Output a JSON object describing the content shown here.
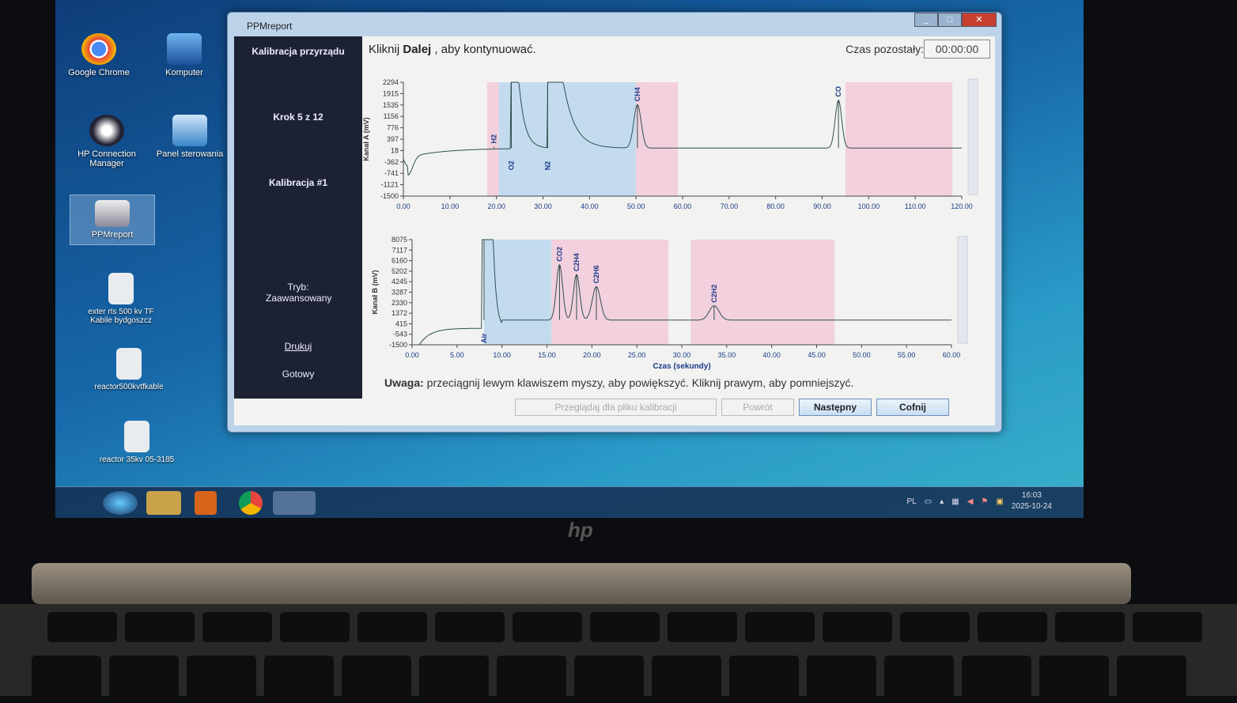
{
  "desktop": {
    "icons": [
      {
        "label": "Google Chrome",
        "icon": "chrome-icon"
      },
      {
        "label": "Komputer",
        "icon": "computer-icon"
      },
      {
        "label": "HP Connection Manager",
        "icon": "wifi-icon"
      },
      {
        "label": "Panel sterowania",
        "icon": "control-panel-icon"
      },
      {
        "label": "PPMreport",
        "icon": "ppmreport-icon"
      },
      {
        "label": "exter rts 500 kv TF Kabile bydgoszcz",
        "icon": "document-icon"
      },
      {
        "label": "reactor500kvtfkable",
        "icon": "document-icon"
      },
      {
        "label": "reactor 35kv 05-3185",
        "icon": "document-icon"
      }
    ]
  },
  "taskbar": {
    "language": "PL",
    "time": "16:03",
    "date": "2025-10-24"
  },
  "window": {
    "title": "PPMreport",
    "left_panel": {
      "heading": "Kalibracja przyrządu",
      "step": "Krok 5 z 12",
      "calibration": "Kalibracja #1",
      "mode": "Tryb: Zaawansowany",
      "print": "Drukuj",
      "status": "Gotowy"
    },
    "instruction_prefix": "Kliknij ",
    "instruction_bold": "Dalej",
    "instruction_suffix": " , aby kontynuować.",
    "time_left_label": "Czas pozostały:",
    "time_left": "00:00:00",
    "note_bold": "Uwaga:",
    "note": " przeciągnij lewym klawiszem myszy, aby powiększyć. Kliknij prawym, aby pomniejszyć.",
    "buttons": {
      "browse": "Przeglądaj dla pliku kalibracji",
      "back": "Powrót",
      "next": "Następny",
      "undo": "Cofnij"
    }
  },
  "colors": {
    "blue_region": "#bcd6ee",
    "pink_region": "#f3c9d9",
    "trace": "#2f4f4f",
    "label": "#1a3a8a"
  },
  "chart_data": [
    {
      "type": "line",
      "ylabel": "Kanał A (mV)",
      "xlabel": "",
      "xlim": [
        0,
        120
      ],
      "ylim": [
        -1500,
        2294
      ],
      "yticks": [
        2294,
        1915,
        1535,
        1156,
        776,
        397,
        18,
        -362,
        -741,
        -1121,
        -1500
      ],
      "xticks": [
        "0.00",
        "10.00",
        "20.00",
        "30.00",
        "40.00",
        "50.00",
        "60.00",
        "70.00",
        "80.00",
        "90.00",
        "100.00",
        "110.00",
        "120.00"
      ],
      "baseline": 100,
      "peaks": [
        {
          "name": "H2",
          "x": 19.5,
          "y": 150
        },
        {
          "name": "O2",
          "x": 23.2,
          "y": "off-scale"
        },
        {
          "name": "N2",
          "x": 31,
          "y": "off-scale"
        },
        {
          "name": "CH4",
          "x": 50.3,
          "y": 1550
        },
        {
          "name": "CO",
          "x": 93.5,
          "y": 1700
        }
      ],
      "regions": [
        {
          "from": 18,
          "to": 20.5,
          "color": "pink"
        },
        {
          "from": 20.5,
          "to": 50,
          "color": "blue"
        },
        {
          "from": 50,
          "to": 59,
          "color": "pink"
        },
        {
          "from": 95,
          "to": 118,
          "color": "pink"
        }
      ]
    },
    {
      "type": "line",
      "ylabel": "Kanał B (mV)",
      "xlabel": "Czas (sekundy)",
      "xlim": [
        0,
        60
      ],
      "ylim": [
        -1500,
        8075
      ],
      "yticks": [
        8075,
        7117,
        6160,
        5202,
        4245,
        3287,
        2330,
        1372,
        415,
        -543,
        -1500
      ],
      "xticks": [
        "0.00",
        "5.00",
        "10.00",
        "15.00",
        "20.00",
        "25.00",
        "30.00",
        "35.00",
        "40.00",
        "45.00",
        "50.00",
        "55.00",
        "60.00"
      ],
      "baseline": 750,
      "peaks": [
        {
          "name": "Air",
          "x": 8,
          "y": "off-scale"
        },
        {
          "name": "CO2",
          "x": 16.4,
          "y": 5800
        },
        {
          "name": "C2H4",
          "x": 18.3,
          "y": 4900
        },
        {
          "name": "C2H6",
          "x": 20.5,
          "y": 3800
        },
        {
          "name": "C2H2",
          "x": 33.6,
          "y": 2050
        }
      ],
      "regions": [
        {
          "from": 8,
          "to": 15.5,
          "color": "blue"
        },
        {
          "from": 15.5,
          "to": 28.5,
          "color": "pink"
        },
        {
          "from": 31,
          "to": 47,
          "color": "pink"
        }
      ]
    }
  ]
}
